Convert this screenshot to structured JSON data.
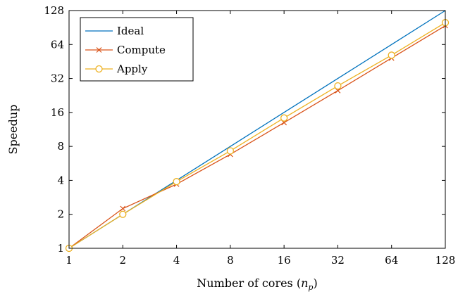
{
  "chart_data": {
    "type": "line",
    "title": "",
    "xlabel": "Number of cores (",
    "xlabel_var": "n",
    "xlabel_sub": "p",
    "xlabel_end": ")",
    "ylabel": "Speedup",
    "x_scale": "log2",
    "y_scale": "log2",
    "xlim": [
      1,
      128
    ],
    "ylim": [
      1,
      128
    ],
    "xticks": [
      1,
      2,
      4,
      8,
      16,
      32,
      64,
      128
    ],
    "yticks": [
      1,
      2,
      4,
      8,
      16,
      32,
      64,
      128
    ],
    "grid": false,
    "legend_position": "top-left",
    "x": [
      1,
      2,
      4,
      8,
      16,
      32,
      64,
      128
    ],
    "series": [
      {
        "name": "Ideal",
        "color": "#0072BD",
        "marker": "none",
        "values": [
          1,
          2,
          4,
          8,
          16,
          32,
          64,
          128
        ]
      },
      {
        "name": "Compute",
        "color": "#D95319",
        "marker": "x",
        "values": [
          1,
          2.25,
          3.7,
          6.8,
          13.0,
          25.0,
          48.5,
          94.0
        ]
      },
      {
        "name": "Apply",
        "color": "#EDB120",
        "marker": "circle",
        "values": [
          1,
          2.0,
          3.9,
          7.3,
          14.3,
          27.5,
          51.5,
          100.0
        ]
      }
    ]
  }
}
